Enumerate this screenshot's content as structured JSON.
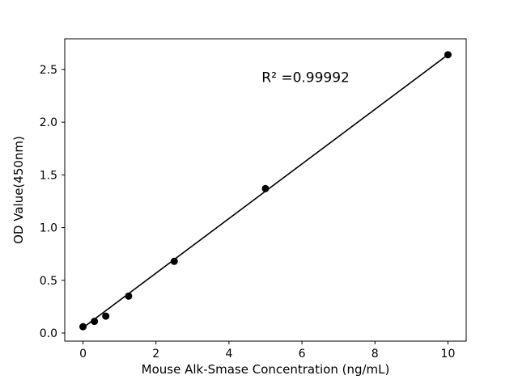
{
  "chart_data": {
    "type": "scatter",
    "title": "",
    "xlabel": "Mouse Alk-Smase Concentration (ng/mL)",
    "ylabel": "OD Value(450nm)",
    "x": [
      0,
      0.3125,
      0.625,
      1.25,
      2.5,
      5,
      10
    ],
    "y": [
      0.06,
      0.11,
      0.16,
      0.35,
      0.68,
      1.37,
      2.64
    ],
    "fit_line": {
      "x": [
        0,
        10
      ],
      "y": [
        0.05,
        2.64
      ]
    },
    "annotation": {
      "text": "R² =0.99992",
      "x": 6.1,
      "y": 2.38
    },
    "xlim": [
      -0.5,
      10.5
    ],
    "ylim": [
      -0.077,
      2.791
    ],
    "x_ticks": [
      0,
      2,
      4,
      6,
      8,
      10
    ],
    "x_tick_labels": [
      "0",
      "2",
      "4",
      "6",
      "8",
      "10"
    ],
    "y_ticks": [
      0.0,
      0.5,
      1.0,
      1.5,
      2.0,
      2.5
    ],
    "y_tick_labels": [
      "0.0",
      "0.5",
      "1.0",
      "1.5",
      "2.0",
      "2.5"
    ],
    "grid": false,
    "legend": null,
    "colors": {
      "marker": "#000000",
      "line": "#000000",
      "axis": "#000000",
      "background": "#ffffff",
      "text": "#000000"
    }
  }
}
